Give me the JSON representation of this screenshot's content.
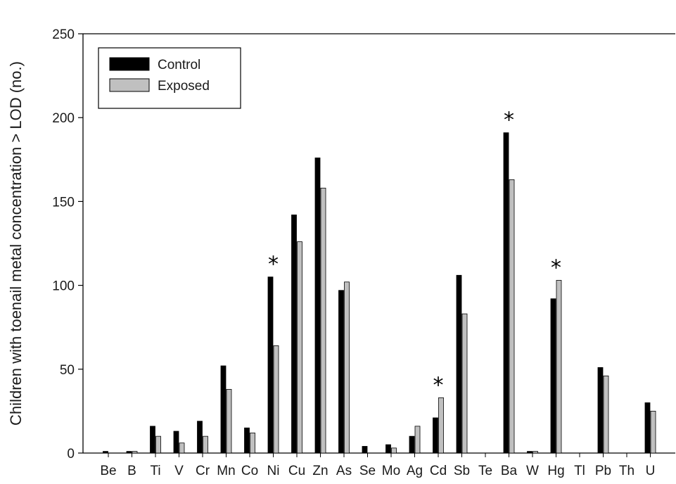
{
  "chart_data": {
    "type": "bar",
    "title": "",
    "xlabel": "",
    "ylabel": "Children with toenail metal concentration > LOD (no.)",
    "ylim": [
      0,
      250
    ],
    "yticks": [
      "0",
      "50",
      "100",
      "150",
      "200",
      "250"
    ],
    "yticks_values": [
      0,
      50,
      100,
      150,
      200,
      250
    ],
    "categories": [
      "Be",
      "B",
      "Ti",
      "V",
      "Cr",
      "Mn",
      "Co",
      "Ni",
      "Cu",
      "Zn",
      "As",
      "Se",
      "Mo",
      "Ag",
      "Cd",
      "Sb",
      "Te",
      "Ba",
      "W",
      "Hg",
      "Tl",
      "Pb",
      "Th",
      "U"
    ],
    "series": [
      {
        "name": "Control",
        "color": "#000000",
        "values": [
          1,
          1,
          16,
          13,
          19,
          52,
          15,
          105,
          142,
          176,
          97,
          4,
          5,
          10,
          21,
          106,
          0,
          191,
          1,
          92,
          0,
          51,
          0,
          30
        ]
      },
      {
        "name": "Exposed",
        "color": "#c0c0c0",
        "values": [
          0,
          1,
          10,
          6,
          10,
          38,
          12,
          64,
          126,
          158,
          102,
          0,
          3,
          16,
          33,
          83,
          0,
          163,
          1,
          103,
          0,
          46,
          0,
          25
        ]
      }
    ],
    "significance_marker": "*",
    "significant_categories": [
      "Ni",
      "Cd",
      "Ba",
      "Hg"
    ],
    "legend": {
      "placement": "top-left",
      "entries": [
        "Control",
        "Exposed"
      ]
    },
    "grid": false
  }
}
